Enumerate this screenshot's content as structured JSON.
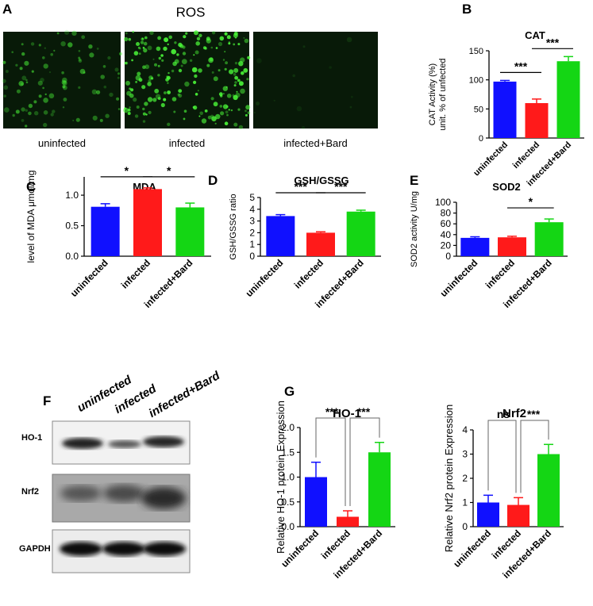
{
  "panel_letters": {
    "A": "A",
    "B": "B",
    "C": "C",
    "D": "D",
    "E": "E",
    "F": "F",
    "G": "G"
  },
  "ros": {
    "title": "ROS",
    "captions": [
      "uninfected",
      "infected",
      "infected+Bard"
    ]
  },
  "blot": {
    "lane_labels": [
      "uninfected",
      "infected",
      "infected+Bard"
    ],
    "row_labels": [
      "HO-1",
      "Nrf2",
      "GAPDH"
    ]
  },
  "colors": {
    "blue": "#1010ff",
    "red": "#ff1a1a",
    "green": "#14d614"
  },
  "chart_data": [
    {
      "id": "B",
      "type": "bar",
      "title": "CAT",
      "ylabel": "CAT Activity (%)\nunit. % of unfected",
      "categories": [
        "uninfected",
        "infected",
        "infected+Bard"
      ],
      "values": [
        97,
        60,
        132
      ],
      "errors": [
        2,
        7,
        8
      ],
      "ylim": [
        0,
        150
      ],
      "yticks": [
        0,
        50,
        100,
        150
      ],
      "significance": [
        {
          "from": 0,
          "to": 1,
          "label": "***"
        },
        {
          "from": 1,
          "to": 2,
          "label": "***"
        }
      ]
    },
    {
      "id": "C",
      "type": "bar",
      "title": "MDA",
      "ylabel": "level of MDA μmol/mg",
      "categories": [
        "uninfected",
        "infected",
        "infected+Bard"
      ],
      "values": [
        0.81,
        1.1,
        0.8
      ],
      "errors": [
        0.05,
        0.02,
        0.07
      ],
      "ylim": [
        0,
        1.3
      ],
      "yticks": [
        0,
        0.5,
        1.0
      ],
      "ytick_labels": [
        "0.0",
        "0.5",
        "1.0"
      ],
      "significance": [
        {
          "from": 0,
          "to": 1,
          "label": "*"
        },
        {
          "from": 1,
          "to": 2,
          "label": "*"
        }
      ]
    },
    {
      "id": "D",
      "type": "bar",
      "title": "GSH/GSSG",
      "ylabel": "GSH/GSSG ratio",
      "categories": [
        "uninfected",
        "infected",
        "infected+Bard"
      ],
      "values": [
        3.42,
        2.0,
        3.8
      ],
      "errors": [
        0.12,
        0.08,
        0.12
      ],
      "ylim": [
        0,
        5
      ],
      "yticks": [
        0,
        1,
        2,
        3,
        4,
        5
      ],
      "significance": [
        {
          "from": 0,
          "to": 1,
          "label": "***"
        },
        {
          "from": 1,
          "to": 2,
          "label": "***"
        }
      ]
    },
    {
      "id": "E",
      "type": "bar",
      "title": "SOD2",
      "ylabel": "SOD2 activity U/mg",
      "categories": [
        "uninfected",
        "infected",
        "infected+Bard"
      ],
      "values": [
        34,
        35,
        63
      ],
      "errors": [
        2,
        2,
        6
      ],
      "ylim": [
        0,
        100
      ],
      "yticks": [
        0,
        20,
        40,
        60,
        80,
        100
      ],
      "significance": [
        {
          "from": 1,
          "to": 2,
          "label": "*"
        }
      ]
    },
    {
      "id": "G1",
      "type": "bar",
      "title": "HO-1",
      "ylabel": "Relative HO-1 protein Expression",
      "categories": [
        "uninfected",
        "infected",
        "infected+Bard"
      ],
      "values": [
        1.0,
        0.2,
        1.5
      ],
      "errors": [
        0.3,
        0.12,
        0.2
      ],
      "ylim": [
        0,
        2.0
      ],
      "yticks": [
        0,
        0.5,
        1.0,
        1.5,
        2.0
      ],
      "ytick_labels": [
        "0.0",
        "0.5",
        "1.0",
        "1.5",
        "2.0"
      ],
      "significance": [
        {
          "from": 0,
          "to": 1,
          "label": "***"
        },
        {
          "from": 1,
          "to": 2,
          "label": "***"
        }
      ]
    },
    {
      "id": "G2",
      "type": "bar",
      "title": "Nrf2",
      "ylabel": "Relative Nrf2 protein Expression",
      "categories": [
        "uninfected",
        "infected",
        "infected+Bard"
      ],
      "values": [
        1.0,
        0.9,
        3.0
      ],
      "errors": [
        0.3,
        0.3,
        0.4
      ],
      "ylim": [
        0,
        4
      ],
      "yticks": [
        0,
        1,
        2,
        3,
        4
      ],
      "significance": [
        {
          "from": 0,
          "to": 1,
          "label": "ns"
        },
        {
          "from": 1,
          "to": 2,
          "label": "***"
        }
      ]
    }
  ]
}
